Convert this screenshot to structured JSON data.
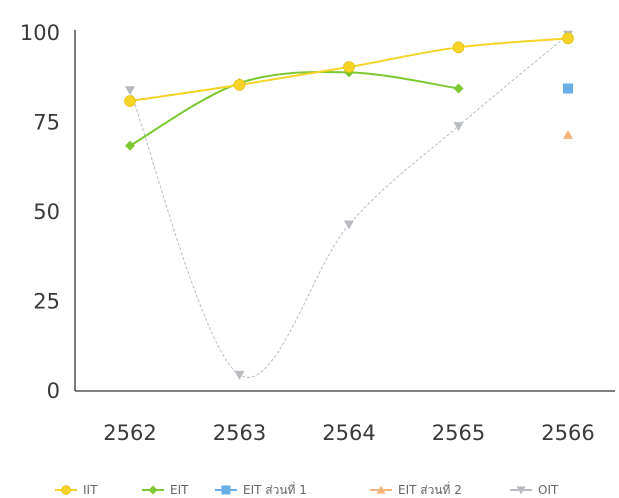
{
  "chart_data": {
    "type": "line",
    "title": "",
    "xlabel": "",
    "ylabel": "",
    "categories": [
      "2562",
      "2563",
      "2564",
      "2565",
      "2566"
    ],
    "ylim": [
      0,
      100
    ],
    "yticks": [
      "0",
      "25",
      "50",
      "75",
      "100"
    ],
    "grid": false,
    "legend_position": "bottom",
    "series": [
      {
        "name": "IIT",
        "color": "#f5d327",
        "marker": "circle",
        "smooth": true,
        "values": [
          81,
          85.5,
          90.5,
          96,
          98.5
        ]
      },
      {
        "name": "EIT",
        "color": "#7dc832",
        "marker": "diamond",
        "smooth": true,
        "values": [
          68.5,
          86,
          89,
          84.5,
          null
        ]
      },
      {
        "name": "EIT ส่วนที่ 1",
        "color": "#6aaee8",
        "marker": "square",
        "smooth": false,
        "values": [
          null,
          null,
          null,
          null,
          84.5
        ]
      },
      {
        "name": "EIT ส่วนที่ 2",
        "color": "#f4b67a",
        "marker": "triangle",
        "smooth": false,
        "values": [
          null,
          null,
          null,
          null,
          71.5
        ]
      },
      {
        "name": "OIT",
        "color": "#b8bcc0",
        "marker": "triangle-down",
        "smooth": true,
        "values": [
          84,
          4.5,
          46.5,
          74,
          99.5
        ]
      }
    ]
  }
}
